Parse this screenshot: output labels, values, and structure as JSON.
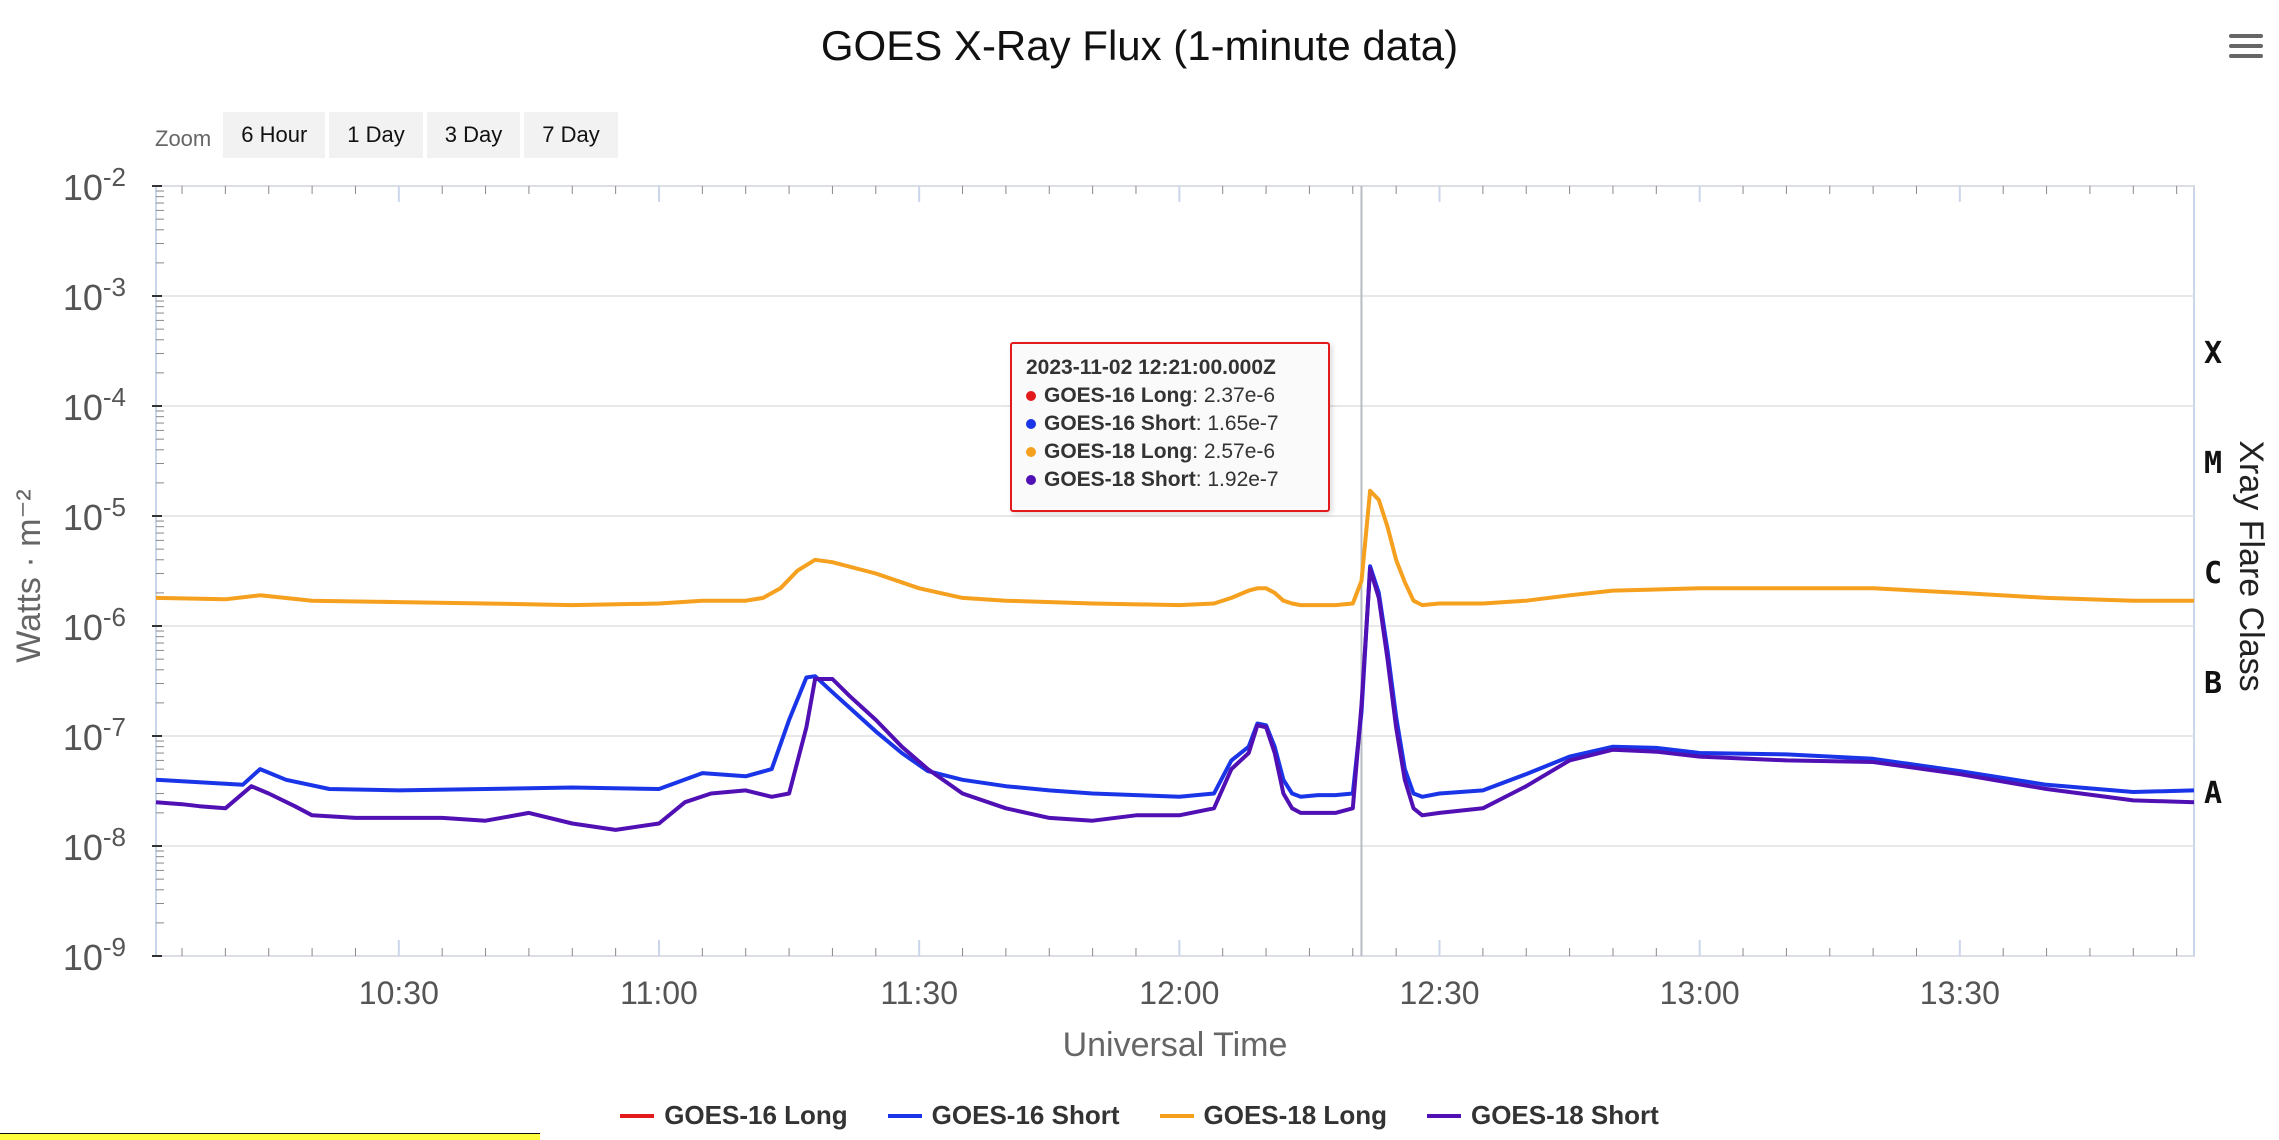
{
  "chart_data": {
    "type": "line",
    "title": "GOES X-Ray Flux (1-minute data)",
    "xlabel": "Universal Time",
    "ylabel": "Watts · m⁻²",
    "y2label": "Xray Flare Class",
    "y_scale": "log",
    "ylim": [
      1e-09,
      0.01
    ],
    "y_ticks": [
      {
        "base": "10",
        "exp": "-2",
        "value": 0.01
      },
      {
        "base": "10",
        "exp": "-3",
        "value": 0.001
      },
      {
        "base": "10",
        "exp": "-4",
        "value": 0.0001
      },
      {
        "base": "10",
        "exp": "-5",
        "value": 1e-05
      },
      {
        "base": "10",
        "exp": "-6",
        "value": 1e-06
      },
      {
        "base": "10",
        "exp": "-7",
        "value": 1e-07
      },
      {
        "base": "10",
        "exp": "-8",
        "value": 1e-08
      },
      {
        "base": "10",
        "exp": "-9",
        "value": 1e-09
      }
    ],
    "xlim": [
      "10:02",
      "13:57"
    ],
    "x_ticks": [
      "10:30",
      "11:00",
      "11:30",
      "12:00",
      "12:30",
      "13:00",
      "13:30"
    ],
    "flare_classes": [
      "X",
      "M",
      "C",
      "B",
      "A"
    ],
    "grid": true,
    "legend_position": "bottom",
    "crosshair_x": "12:21",
    "series": [
      {
        "name": "GOES-16 Long",
        "color": "#e31a1c",
        "x": [],
        "values": []
      },
      {
        "name": "GOES-16 Short",
        "color": "#1a35e8",
        "x": [
          "10:02",
          "10:07",
          "10:12",
          "10:14",
          "10:17",
          "10:22",
          "10:30",
          "10:40",
          "10:50",
          "11:00",
          "11:05",
          "11:10",
          "11:13",
          "11:15",
          "11:17",
          "11:18",
          "11:20",
          "11:22",
          "11:25",
          "11:28",
          "11:31",
          "11:35",
          "11:40",
          "11:45",
          "11:50",
          "11:55",
          "12:00",
          "12:04",
          "12:06",
          "12:08",
          "12:09",
          "12:10",
          "12:11",
          "12:12",
          "12:13",
          "12:14",
          "12:16",
          "12:18",
          "12:20",
          "12:21",
          "12:22",
          "12:23",
          "12:24",
          "12:25",
          "12:26",
          "12:27",
          "12:28",
          "12:30",
          "12:35",
          "12:40",
          "12:45",
          "12:50",
          "12:55",
          "13:00",
          "13:10",
          "13:20",
          "13:30",
          "13:40",
          "13:50",
          "13:57"
        ],
        "values": [
          4e-08,
          3.8e-08,
          3.6e-08,
          5e-08,
          4e-08,
          3.3e-08,
          3.2e-08,
          3.3e-08,
          3.4e-08,
          3.3e-08,
          4.6e-08,
          4.3e-08,
          5e-08,
          1.4e-07,
          3.4e-07,
          3.5e-07,
          2.5e-07,
          1.8e-07,
          1.1e-07,
          7e-08,
          4.8e-08,
          4e-08,
          3.5e-08,
          3.2e-08,
          3e-08,
          2.9e-08,
          2.8e-08,
          3e-08,
          6e-08,
          8e-08,
          1.3e-07,
          1.25e-07,
          8e-08,
          4e-08,
          3e-08,
          2.8e-08,
          2.9e-08,
          2.9e-08,
          3e-08,
          1.65e-07,
          3.5e-06,
          2e-06,
          6e-07,
          1.5e-07,
          5e-08,
          3e-08,
          2.8e-08,
          3e-08,
          3.2e-08,
          4.5e-08,
          6.5e-08,
          8e-08,
          7.8e-08,
          7e-08,
          6.8e-08,
          6.2e-08,
          4.8e-08,
          3.6e-08,
          3.1e-08,
          3.2e-08
        ]
      },
      {
        "name": "GOES-18 Long",
        "color": "#f5a01e",
        "x": [
          "10:02",
          "10:10",
          "10:14",
          "10:20",
          "10:30",
          "10:40",
          "10:50",
          "11:00",
          "11:05",
          "11:10",
          "11:12",
          "11:14",
          "11:16",
          "11:18",
          "11:20",
          "11:25",
          "11:30",
          "11:35",
          "11:40",
          "11:50",
          "12:00",
          "12:04",
          "12:06",
          "12:08",
          "12:09",
          "12:10",
          "12:11",
          "12:12",
          "12:13",
          "12:14",
          "12:16",
          "12:18",
          "12:20",
          "12:21",
          "12:22",
          "12:23",
          "12:24",
          "12:25",
          "12:26",
          "12:27",
          "12:28",
          "12:30",
          "12:35",
          "12:40",
          "12:45",
          "12:50",
          "13:00",
          "13:10",
          "13:20",
          "13:30",
          "13:40",
          "13:50",
          "13:57"
        ],
        "values": [
          1.8e-06,
          1.75e-06,
          1.9e-06,
          1.7e-06,
          1.65e-06,
          1.6e-06,
          1.55e-06,
          1.6e-06,
          1.7e-06,
          1.7e-06,
          1.8e-06,
          2.2e-06,
          3.2e-06,
          4e-06,
          3.8e-06,
          3e-06,
          2.2e-06,
          1.8e-06,
          1.7e-06,
          1.6e-06,
          1.55e-06,
          1.6e-06,
          1.8e-06,
          2.1e-06,
          2.2e-06,
          2.2e-06,
          2e-06,
          1.7e-06,
          1.6e-06,
          1.55e-06,
          1.55e-06,
          1.55e-06,
          1.6e-06,
          2.57e-06,
          1.7e-05,
          1.4e-05,
          8e-06,
          4e-06,
          2.5e-06,
          1.7e-06,
          1.55e-06,
          1.6e-06,
          1.6e-06,
          1.7e-06,
          1.9e-06,
          2.1e-06,
          2.2e-06,
          2.2e-06,
          2.2e-06,
          2e-06,
          1.8e-06,
          1.7e-06,
          1.7e-06
        ]
      },
      {
        "name": "GOES-18 Short",
        "color": "#5010b4",
        "x": [
          "10:02",
          "10:05",
          "10:07",
          "10:10",
          "10:13",
          "10:15",
          "10:18",
          "10:20",
          "10:25",
          "10:30",
          "10:35",
          "10:40",
          "10:45",
          "10:50",
          "10:55",
          "11:00",
          "11:03",
          "11:06",
          "11:10",
          "11:13",
          "11:15",
          "11:17",
          "11:18",
          "11:20",
          "11:22",
          "11:25",
          "11:28",
          "11:31",
          "11:35",
          "11:40",
          "11:45",
          "11:50",
          "11:55",
          "12:00",
          "12:04",
          "12:06",
          "12:08",
          "12:09",
          "12:10",
          "12:11",
          "12:12",
          "12:13",
          "12:14",
          "12:16",
          "12:18",
          "12:20",
          "12:21",
          "12:22",
          "12:23",
          "12:24",
          "12:25",
          "12:26",
          "12:27",
          "12:28",
          "12:30",
          "12:35",
          "12:40",
          "12:45",
          "12:50",
          "12:55",
          "13:00",
          "13:10",
          "13:20",
          "13:30",
          "13:40",
          "13:50",
          "13:57"
        ],
        "values": [
          2.5e-08,
          2.4e-08,
          2.3e-08,
          2.2e-08,
          3.5e-08,
          3e-08,
          2.3e-08,
          1.9e-08,
          1.8e-08,
          1.8e-08,
          1.8e-08,
          1.7e-08,
          2e-08,
          1.6e-08,
          1.4e-08,
          1.6e-08,
          2.5e-08,
          3e-08,
          3.2e-08,
          2.8e-08,
          3e-08,
          1.2e-07,
          3.3e-07,
          3.3e-07,
          2.3e-07,
          1.4e-07,
          8e-08,
          5e-08,
          3e-08,
          2.2e-08,
          1.8e-08,
          1.7e-08,
          1.9e-08,
          1.9e-08,
          2.2e-08,
          5e-08,
          7e-08,
          1.25e-07,
          1.2e-07,
          7e-08,
          3e-08,
          2.2e-08,
          2e-08,
          2e-08,
          2e-08,
          2.2e-08,
          1.92e-07,
          3.3e-06,
          1.8e-06,
          5e-07,
          1.2e-07,
          4e-08,
          2.2e-08,
          1.9e-08,
          2e-08,
          2.2e-08,
          3.5e-08,
          6e-08,
          7.5e-08,
          7.2e-08,
          6.5e-08,
          6e-08,
          5.8e-08,
          4.5e-08,
          3.3e-08,
          2.6e-08,
          2.5e-08
        ]
      }
    ]
  },
  "zoom": {
    "label": "Zoom",
    "buttons": [
      "6 Hour",
      "1 Day",
      "3 Day",
      "7 Day"
    ]
  },
  "tooltip": {
    "header": "2023-11-02 12:21:00.000Z",
    "rows": [
      {
        "name": "GOES-16 Long",
        "value": "2.37e-6",
        "color": "#e31a1c"
      },
      {
        "name": "GOES-16 Short",
        "value": "1.65e-7",
        "color": "#1a35e8"
      },
      {
        "name": "GOES-18 Long",
        "value": "2.57e-6",
        "color": "#f5a01e"
      },
      {
        "name": "GOES-18 Short",
        "value": "1.92e-7",
        "color": "#5010b4"
      }
    ]
  },
  "menu_icon": "hamburger-icon"
}
